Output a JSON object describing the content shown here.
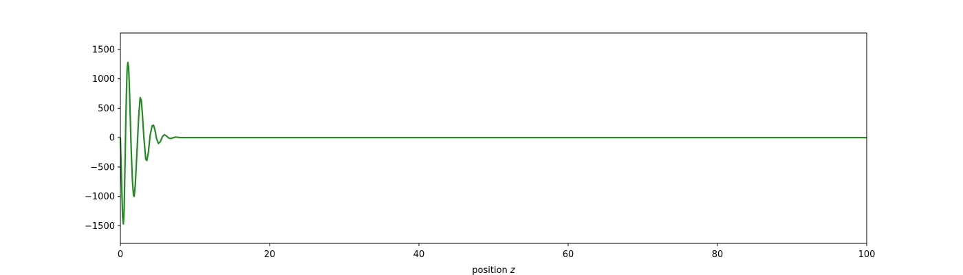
{
  "chart_data": {
    "type": "line",
    "xlabel": "position",
    "xlabel_var": "z",
    "xlim": [
      0,
      100
    ],
    "ylim": [
      -1800,
      1780
    ],
    "xticks": [
      0,
      20,
      40,
      60,
      80,
      100
    ],
    "yticks": [
      -1500,
      -1000,
      -500,
      0,
      500,
      1000,
      1500
    ],
    "xtick_labels": [
      "0",
      "20",
      "40",
      "60",
      "80",
      "100"
    ],
    "ytick_labels": [
      "−1500",
      "−1000",
      "−500",
      "0",
      "500",
      "1000",
      "1500"
    ],
    "grid": false,
    "legend": "none",
    "series": [
      {
        "color": "#228b22",
        "points": [
          [
            0.0,
            0
          ],
          [
            0.15,
            -700
          ],
          [
            0.3,
            -1350
          ],
          [
            0.4,
            -1470
          ],
          [
            0.5,
            -1250
          ],
          [
            0.6,
            -600
          ],
          [
            0.7,
            100
          ],
          [
            0.8,
            700
          ],
          [
            0.9,
            1150
          ],
          [
            1.0,
            1280
          ],
          [
            1.1,
            1200
          ],
          [
            1.2,
            900
          ],
          [
            1.3,
            450
          ],
          [
            1.45,
            -200
          ],
          [
            1.6,
            -700
          ],
          [
            1.75,
            -980
          ],
          [
            1.85,
            -1000
          ],
          [
            2.0,
            -800
          ],
          [
            2.2,
            -300
          ],
          [
            2.45,
            350
          ],
          [
            2.65,
            680
          ],
          [
            2.8,
            640
          ],
          [
            2.95,
            400
          ],
          [
            3.15,
            0
          ],
          [
            3.4,
            -370
          ],
          [
            3.55,
            -390
          ],
          [
            3.75,
            -250
          ],
          [
            4.0,
            50
          ],
          [
            4.25,
            200
          ],
          [
            4.45,
            210
          ],
          [
            4.65,
            120
          ],
          [
            4.85,
            -20
          ],
          [
            5.1,
            -100
          ],
          [
            5.35,
            -70
          ],
          [
            5.65,
            20
          ],
          [
            5.9,
            50
          ],
          [
            6.2,
            25
          ],
          [
            6.5,
            -10
          ],
          [
            6.8,
            -15
          ],
          [
            7.1,
            0
          ],
          [
            7.4,
            10
          ],
          [
            7.7,
            5
          ],
          [
            8.0,
            0
          ],
          [
            10,
            0
          ],
          [
            20,
            0
          ],
          [
            40,
            0
          ],
          [
            60,
            0
          ],
          [
            80,
            0
          ],
          [
            100,
            0
          ]
        ]
      }
    ]
  }
}
